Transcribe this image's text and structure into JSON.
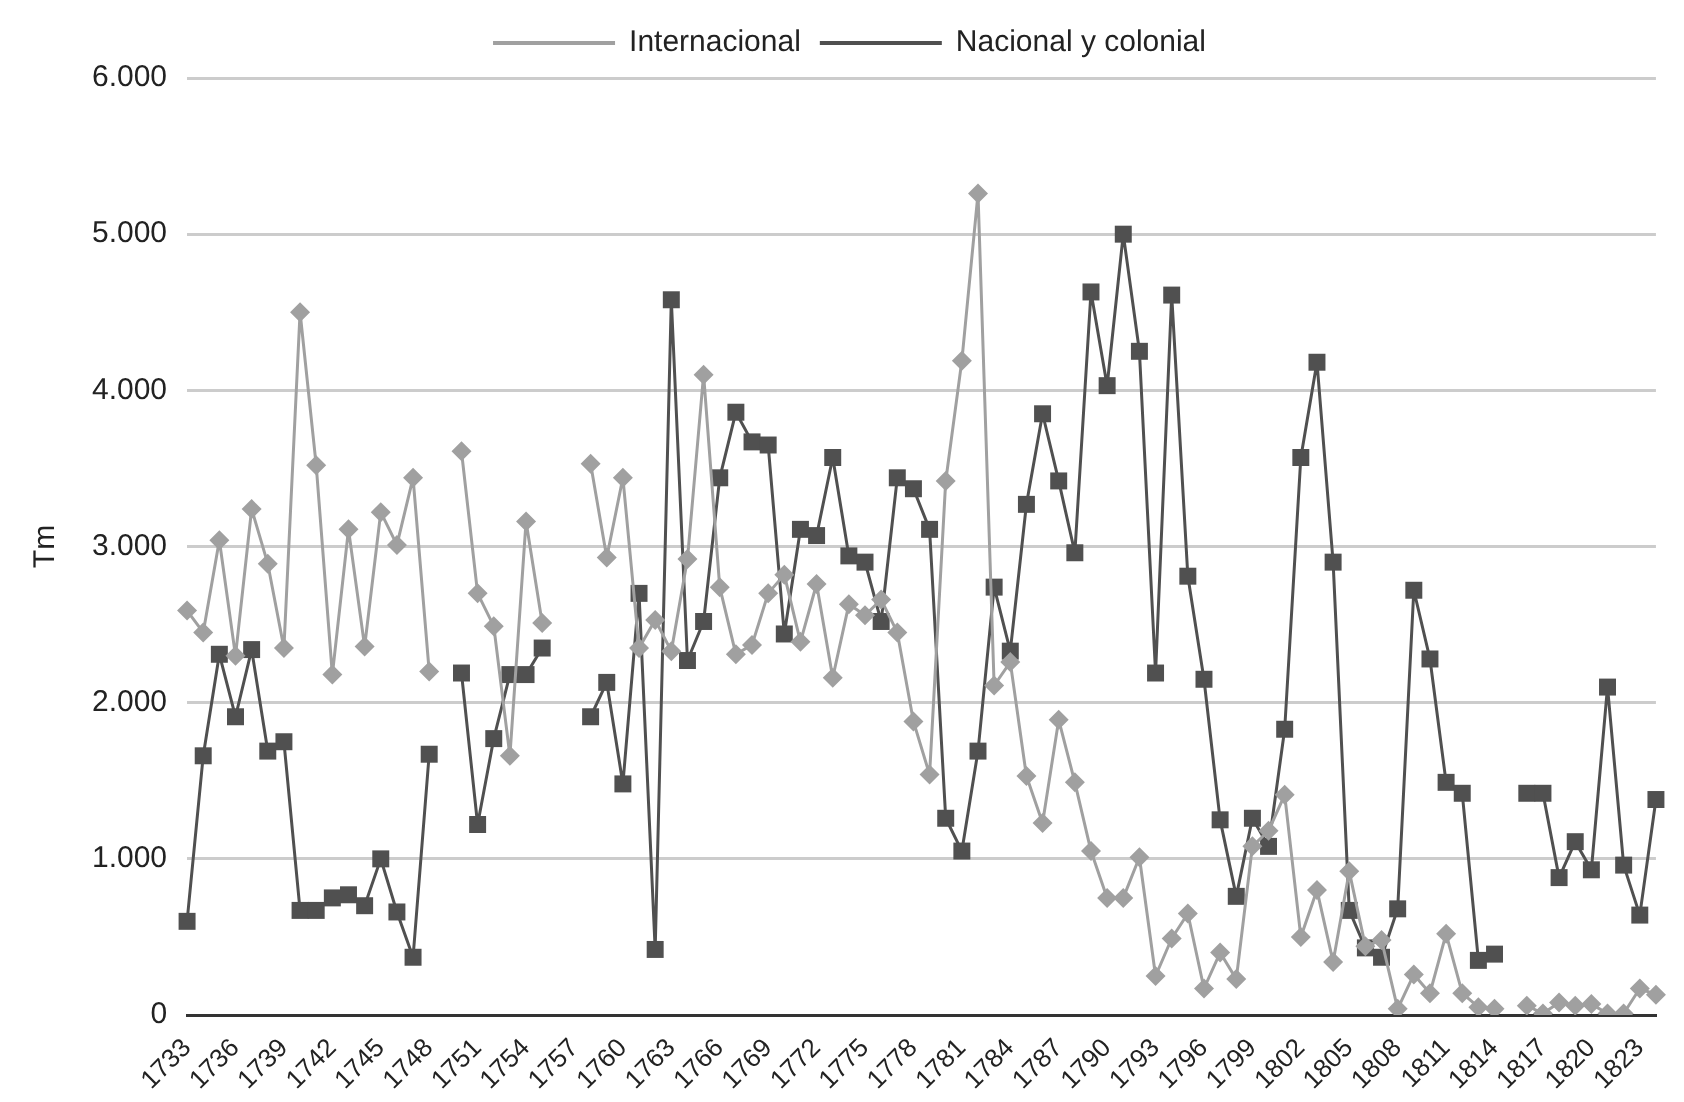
{
  "chart_data": {
    "type": "line",
    "ylabel": "Tm",
    "legend": "top",
    "grid": "y",
    "categories": [
      "1733",
      null,
      null,
      "1736",
      null,
      null,
      "1739",
      null,
      null,
      "1742",
      null,
      null,
      "1745",
      null,
      null,
      "1748",
      null,
      null,
      "1751",
      null,
      null,
      "1754",
      null,
      null,
      "1757",
      null,
      null,
      "1760",
      null,
      null,
      "1763",
      null,
      null,
      "1766",
      null,
      null,
      "1769",
      null,
      null,
      "1772",
      null,
      null,
      "1775",
      null,
      null,
      "1778",
      null,
      null,
      "1781",
      null,
      null,
      "1784",
      null,
      null,
      "1787",
      null,
      null,
      "1790",
      null,
      null,
      "1793",
      null,
      null,
      "1796",
      null,
      null,
      "1799",
      null,
      null,
      "1802",
      null,
      null,
      "1805",
      null,
      null,
      "1808",
      null,
      null,
      "1811",
      null,
      null,
      "1814",
      null,
      null,
      "1817",
      null,
      null,
      "1820",
      null,
      null,
      "1823",
      null
    ],
    "ylim": [
      0,
      6000
    ],
    "yticks": [
      0,
      {
        "value": 1000,
        "label": "1.000"
      },
      {
        "value": 2000,
        "label": "2.000"
      },
      {
        "value": 3000,
        "label": "3.000"
      },
      {
        "value": 4000,
        "label": "4.000"
      },
      {
        "value": 5000,
        "label": "5.000"
      },
      {
        "value": 6000,
        "label": "6.000"
      }
    ],
    "series": [
      {
        "name": "Internacional",
        "color": "#a0a0a0",
        "marker": "diamond",
        "values": [
          2590,
          2450,
          3040,
          2300,
          3240,
          2890,
          2350,
          4500,
          3520,
          2180,
          3110,
          2360,
          3220,
          3010,
          3440,
          2200,
          null,
          3610,
          2700,
          2490,
          1660,
          3160,
          2510,
          null,
          null,
          3530,
          2930,
          3440,
          2350,
          2530,
          2330,
          2920,
          4100,
          2740,
          2310,
          2370,
          2700,
          2820,
          2390,
          2760,
          2160,
          2630,
          2560,
          2660,
          2450,
          1880,
          1540,
          3420,
          4190,
          5260,
          2110,
          2260,
          1530,
          1230,
          1890,
          1490,
          1050,
          750,
          750,
          1010,
          250,
          490,
          650,
          170,
          400,
          230,
          1080,
          1180,
          1410,
          500,
          800,
          340,
          920,
          440,
          480,
          40,
          260,
          140,
          520,
          140,
          50,
          40,
          null,
          60,
          10,
          80,
          60,
          70,
          10,
          10,
          170,
          130
        ]
      },
      {
        "name": "Nacional y colonial",
        "color": "#505050",
        "marker": "square",
        "values": [
          600,
          1660,
          2310,
          1910,
          2340,
          1690,
          1750,
          670,
          670,
          750,
          770,
          700,
          1000,
          660,
          370,
          1670,
          null,
          2190,
          1220,
          1770,
          2180,
          2180,
          2350,
          null,
          null,
          1910,
          2130,
          1480,
          2700,
          420,
          4580,
          2270,
          2520,
          3440,
          3860,
          3670,
          3650,
          2440,
          3110,
          3070,
          3570,
          2940,
          2900,
          2520,
          3440,
          3370,
          3110,
          1260,
          1050,
          1690,
          2740,
          2330,
          3270,
          3850,
          3420,
          2960,
          4630,
          4030,
          5000,
          4250,
          2190,
          4610,
          2810,
          2150,
          1250,
          760,
          1260,
          1080,
          1830,
          3570,
          4180,
          2900,
          670,
          430,
          370,
          680,
          2720,
          2280,
          1490,
          1420,
          350,
          390,
          null,
          1420,
          1420,
          880,
          1110,
          930,
          2100,
          960,
          640,
          1380
        ]
      }
    ]
  }
}
